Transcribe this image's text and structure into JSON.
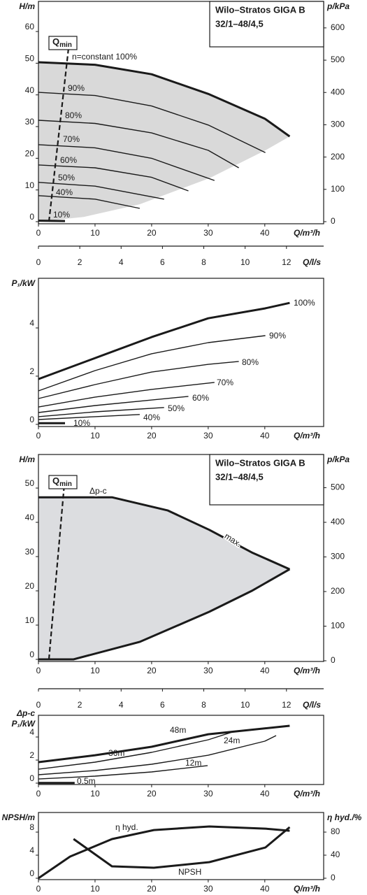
{
  "chart_data": [
    {
      "type": "line",
      "title": "Wilo–Stratos GIGA B",
      "subtitle": "32/1–48/4,5",
      "ylabel": "H/m",
      "y2label": "p/kPa",
      "xlabel": "Q/m³/h",
      "xlim": [
        0,
        50.4
      ],
      "xticks": [
        0,
        10,
        20,
        30,
        40
      ],
      "ylim": [
        -0.66,
        69.5
      ],
      "yticks": [
        0,
        10,
        20,
        30,
        40,
        50,
        60
      ],
      "y2lim": [
        -6.5,
        682
      ],
      "y2ticks": [
        0,
        100,
        200,
        300,
        400,
        500,
        600
      ],
      "region": {
        "color": "#d9d9d9",
        "x": [
          0,
          8,
          17.9,
          30.2,
          40.1,
          44.4
        ],
        "values": [
          0,
          1.5,
          5.5,
          13.7,
          22.5,
          26.9
        ]
      },
      "qmin": {
        "label": "Q",
        "sub": "min",
        "x": [
          1.85,
          5.3
        ],
        "values": [
          0,
          54.5
        ]
      },
      "series": [
        {
          "name": "n=constant 100%",
          "color": "#1a1a1a",
          "thick": true,
          "x": [
            0,
            10,
            20,
            30,
            40,
            44.4
          ],
          "values": [
            50.3,
            49.5,
            46.5,
            40.3,
            32.5,
            26.9
          ]
        },
        {
          "name": "90%",
          "color": "#1a1a1a",
          "x": [
            0,
            10,
            20,
            30,
            40.1
          ],
          "values": [
            40.8,
            39.8,
            36.5,
            30.5,
            21.8
          ]
        },
        {
          "name": "80%",
          "color": "#1a1a1a",
          "x": [
            0,
            10,
            20,
            30,
            35.4
          ],
          "values": [
            32,
            31,
            28,
            22.5,
            17
          ]
        },
        {
          "name": "70%",
          "color": "#1a1a1a",
          "x": [
            0,
            10,
            20,
            31.1
          ],
          "values": [
            24.3,
            23.3,
            20,
            13
          ]
        },
        {
          "name": "60%",
          "color": "#1a1a1a",
          "x": [
            0,
            10,
            20,
            26.5
          ],
          "values": [
            17.9,
            17,
            14,
            9.7
          ]
        },
        {
          "name": "50%",
          "color": "#1a1a1a",
          "x": [
            0,
            10,
            22.2
          ],
          "values": [
            12.4,
            11.2,
            7.1
          ]
        },
        {
          "name": "40%",
          "color": "#1a1a1a",
          "x": [
            0,
            10,
            17.9
          ],
          "values": [
            8.2,
            7.1,
            4.2
          ]
        },
        {
          "name": "10%",
          "color": "#1a1a1a",
          "thick": true,
          "x": [
            0,
            4.7
          ],
          "values": [
            0.3,
            0.2
          ]
        }
      ]
    },
    {
      "type": "axis",
      "xlabel": "Q/l/s",
      "xlim": [
        0,
        13.8
      ],
      "xticks": [
        0,
        2,
        4,
        6,
        8,
        10,
        12
      ]
    },
    {
      "type": "line",
      "ylabel": "P₁/kW",
      "xlabel": "Q/m³/h",
      "xlim": [
        0,
        50.4
      ],
      "xticks": [
        0,
        10,
        20,
        30,
        40
      ],
      "ylim": [
        -0.09,
        6.06
      ],
      "yticks": [
        0,
        2,
        4
      ],
      "series": [
        {
          "name": "100%",
          "color": "#1a1a1a",
          "thick": true,
          "x": [
            0,
            10,
            20,
            30,
            40,
            44.4
          ],
          "values": [
            1.88,
            2.75,
            3.62,
            4.4,
            4.81,
            5.04
          ]
        },
        {
          "name": "90%",
          "color": "#1a1a1a",
          "x": [
            0,
            10,
            20,
            30,
            40.1
          ],
          "values": [
            1.39,
            2.23,
            2.93,
            3.39,
            3.68
          ]
        },
        {
          "name": "80%",
          "color": "#1a1a1a",
          "x": [
            0,
            10,
            20,
            30,
            35.4
          ],
          "values": [
            1.07,
            1.65,
            2.17,
            2.49,
            2.61
          ]
        },
        {
          "name": "70%",
          "color": "#1a1a1a",
          "x": [
            0,
            10,
            20,
            31.1
          ],
          "values": [
            0.72,
            1.13,
            1.45,
            1.74
          ]
        },
        {
          "name": "60%",
          "color": "#1a1a1a",
          "x": [
            0,
            10,
            20,
            26.5
          ],
          "values": [
            0.49,
            0.78,
            1.01,
            1.16
          ]
        },
        {
          "name": "50%",
          "color": "#1a1a1a",
          "x": [
            0,
            10,
            22.2
          ],
          "values": [
            0.32,
            0.52,
            0.7
          ]
        },
        {
          "name": "40%",
          "color": "#1a1a1a",
          "x": [
            0,
            10,
            17.9
          ],
          "values": [
            0.2,
            0.32,
            0.41
          ]
        },
        {
          "name": "10%",
          "color": "#1a1a1a",
          "thick": true,
          "x": [
            0,
            4.7
          ],
          "values": [
            0.05,
            0.05
          ]
        }
      ]
    },
    {
      "type": "line",
      "title": "Wilo–Stratos GIGA B",
      "subtitle": "32/1–48/4,5",
      "ylabel": "H/m",
      "y2label": "p/kPa",
      "xlabel": "Q/m³/h",
      "xlim": [
        0,
        50.4
      ],
      "xticks": [
        0,
        10,
        20,
        30,
        40
      ],
      "ylim": [
        -0.61,
        59.8
      ],
      "yticks": [
        0,
        10,
        20,
        30,
        40,
        50
      ],
      "y2lim": [
        -2,
        596
      ],
      "y2ticks": [
        0,
        100,
        200,
        300,
        400,
        500
      ],
      "region": {
        "color": "#dcdde0",
        "outline": true,
        "x": [
          0,
          6.2,
          17.9,
          30.2,
          37.7,
          44.4
        ],
        "values": [
          0,
          0,
          5.1,
          13.9,
          20,
          26.3
        ]
      },
      "qmin": {
        "label": "Q",
        "sub": "min",
        "x": [
          1.85,
          4.6
        ],
        "values": [
          0,
          51.6
        ]
      },
      "annotations": [
        "Δp-c",
        "max."
      ],
      "series": [
        {
          "color": "#1a1a1a",
          "thick": true,
          "x": [
            0,
            13,
            22.8,
            30.2,
            37.7,
            44.4
          ],
          "values": [
            47.3,
            47.3,
            43.5,
            37.8,
            31.2,
            26.3
          ]
        }
      ]
    },
    {
      "type": "axis",
      "xlabel": "Q/l/s",
      "xlim": [
        0,
        13.8
      ],
      "xticks": [
        0,
        2,
        4,
        6,
        8,
        10,
        12
      ]
    },
    {
      "type": "line",
      "ylabel": [
        "Δp-c",
        "P₁/kW"
      ],
      "xlabel": "Q/m³/h",
      "xlim": [
        0,
        50.4
      ],
      "xticks": [
        0,
        10,
        20,
        30,
        40
      ],
      "ylim": [
        -0.12,
        5.88
      ],
      "yticks": [
        0,
        2,
        4
      ],
      "series": [
        {
          "name": "48m",
          "color": "#1a1a1a",
          "thick": true,
          "x": [
            0,
            10,
            20,
            30,
            44.4
          ],
          "values": [
            1.82,
            2.42,
            3.15,
            4.24,
            4.97
          ]
        },
        {
          "name": "36m",
          "color": "#1a1a1a",
          "x": [
            0,
            10,
            20,
            30,
            34.6
          ],
          "values": [
            1.21,
            1.82,
            2.67,
            3.76,
            4.48
          ]
        },
        {
          "name": "24m",
          "color": "#1a1a1a",
          "x": [
            0,
            10,
            20,
            30,
            40,
            42
          ],
          "values": [
            0.73,
            1.09,
            1.64,
            2.42,
            3.64,
            4.12
          ]
        },
        {
          "name": "12m",
          "color": "#1a1a1a",
          "x": [
            0,
            10,
            20,
            29.9
          ],
          "values": [
            0.36,
            0.61,
            0.97,
            1.52
          ]
        },
        {
          "name": "0.5m",
          "color": "#1a1a1a",
          "thick": true,
          "x": [
            0,
            6.4
          ],
          "values": [
            0.02,
            0.02
          ]
        }
      ]
    },
    {
      "type": "line",
      "ylabel": "NPSH/m",
      "y2label": "η hyd./%",
      "xlabel": "Q/m³/h",
      "xlim": [
        0,
        50.4
      ],
      "xticks": [
        0,
        10,
        20,
        30,
        40
      ],
      "ylim": [
        -0.24,
        11.4
      ],
      "yticks": [
        0,
        4,
        8
      ],
      "y2lim": [
        -2.4,
        114
      ],
      "y2ticks": [
        0,
        40,
        80
      ],
      "series": [
        {
          "name": "η hyd.",
          "color": "#1a1a1a",
          "thick": true,
          "axis": "y2",
          "x": [
            0,
            5.6,
            13,
            20.4,
            30.2,
            40.1,
            44.4
          ],
          "values": [
            0,
            37.6,
            67.9,
            83.6,
            89.7,
            86,
            82.4
          ]
        },
        {
          "name": "NPSH",
          "color": "#1a1a1a",
          "thick": true,
          "x": [
            6.2,
            13,
            20.4,
            30.2,
            40.1,
            44.4
          ],
          "values": [
            6.8,
            2.06,
            1.82,
            2.79,
            5.33,
            8.85
          ]
        }
      ]
    }
  ]
}
